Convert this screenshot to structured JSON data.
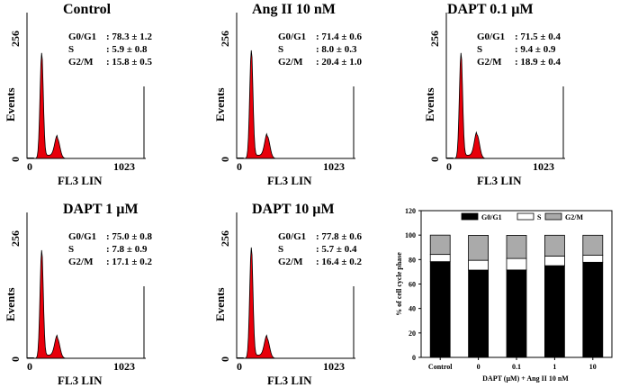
{
  "chart_data": [
    {
      "type": "histogram",
      "title": "Control",
      "stats": [
        {
          "label": "G0/G1",
          "value": ": 78.3 ± 1.2"
        },
        {
          "label": "S",
          "value": ": 5.9 ± 0.8"
        },
        {
          "label": "G2/M",
          "value": ": 15.8 ± 0.5"
        }
      ],
      "xlabel": "FL3 LIN",
      "ylabel": "Events",
      "xlim": [
        0,
        1023
      ],
      "ylim": [
        0,
        256
      ],
      "x_ticks": [
        "0",
        "1023"
      ],
      "y_ticks": [
        "0",
        "256"
      ],
      "peaks": [
        {
          "x": 128,
          "height": 200
        },
        {
          "x": 265,
          "height": 38
        }
      ]
    },
    {
      "type": "histogram",
      "title": "Ang II  10 nM",
      "stats": [
        {
          "label": "G0/G1",
          "value": ": 71.4 ± 0.6"
        },
        {
          "label": "S",
          "value": ": 8.0 ± 0.3"
        },
        {
          "label": "G2/M",
          "value": ": 20.4 ± 1.0"
        }
      ],
      "xlabel": "FL3 LIN",
      "ylabel": "Events",
      "xlim": [
        0,
        1023
      ],
      "ylim": [
        0,
        256
      ],
      "x_ticks": [
        "0",
        "1023"
      ],
      "y_ticks": [
        "0",
        "256"
      ],
      "peaks": [
        {
          "x": 128,
          "height": 205
        },
        {
          "x": 268,
          "height": 42
        }
      ]
    },
    {
      "type": "histogram",
      "title": "DAPT 0.1 µM",
      "stats": [
        {
          "label": "G0/G1",
          "value": ": 71.5 ± 0.4"
        },
        {
          "label": "S",
          "value": ": 9.4 ± 0.9"
        },
        {
          "label": "G2/M",
          "value": ": 18.9 ± 0.4"
        }
      ],
      "xlabel": "FL3 LIN",
      "ylabel": "Events",
      "xlim": [
        0,
        1023
      ],
      "ylim": [
        0,
        256
      ],
      "x_ticks": [
        "0",
        "1023"
      ],
      "y_ticks": [
        "0",
        "256"
      ],
      "peaks": [
        {
          "x": 128,
          "height": 200
        },
        {
          "x": 268,
          "height": 45
        }
      ]
    },
    {
      "type": "histogram",
      "title": "DAPT 1 µM",
      "stats": [
        {
          "label": "G0/G1",
          "value": ": 75.0 ± 0.8"
        },
        {
          "label": "S",
          "value": ": 7.8 ± 0.9"
        },
        {
          "label": "G2/M",
          "value": ": 17.1 ± 0.2"
        }
      ],
      "xlabel": "FL3 LIN",
      "ylabel": "Events",
      "xlim": [
        0,
        1023
      ],
      "ylim": [
        0,
        256
      ],
      "x_ticks": [
        "0",
        "1023"
      ],
      "y_ticks": [
        "0",
        "256"
      ],
      "peaks": [
        {
          "x": 128,
          "height": 205
        },
        {
          "x": 265,
          "height": 38
        }
      ]
    },
    {
      "type": "histogram",
      "title": "DAPT 10 µM",
      "stats": [
        {
          "label": "G0/G1",
          "value": ": 77.8 ± 0.6"
        },
        {
          "label": "S",
          "value": ": 5.7 ± 0.4"
        },
        {
          "label": "G2/M",
          "value": ": 16.4 ± 0.2"
        }
      ],
      "xlabel": "FL3 LIN",
      "ylabel": "Events",
      "xlim": [
        0,
        1023
      ],
      "ylim": [
        0,
        256
      ],
      "x_ticks": [
        "0",
        "1023"
      ],
      "y_ticks": [
        "0",
        "256"
      ],
      "peaks": [
        {
          "x": 128,
          "height": 210
        },
        {
          "x": 265,
          "height": 38
        }
      ]
    },
    {
      "type": "stacked_bar",
      "categories": [
        "Control",
        "0",
        "0.1",
        "1",
        "10"
      ],
      "series": [
        {
          "name": "G0/G1",
          "color": "#000000",
          "values": [
            78.3,
            71.4,
            71.5,
            75.0,
            77.8
          ]
        },
        {
          "name": "S",
          "color": "#ffffff",
          "values": [
            5.9,
            8.0,
            9.4,
            7.8,
            5.7
          ]
        },
        {
          "name": "G2/M",
          "color": "#aaaaaa",
          "values": [
            15.8,
            20.4,
            18.9,
            17.1,
            16.4
          ]
        }
      ],
      "ylabel": "% of cell cycle phase",
      "xlabel": "DAPT (µM) + Ang  II 10 nM",
      "ylim": [
        0,
        120
      ],
      "y_ticks": [
        "0",
        "20",
        "40",
        "60",
        "80",
        "100",
        "120"
      ]
    }
  ]
}
